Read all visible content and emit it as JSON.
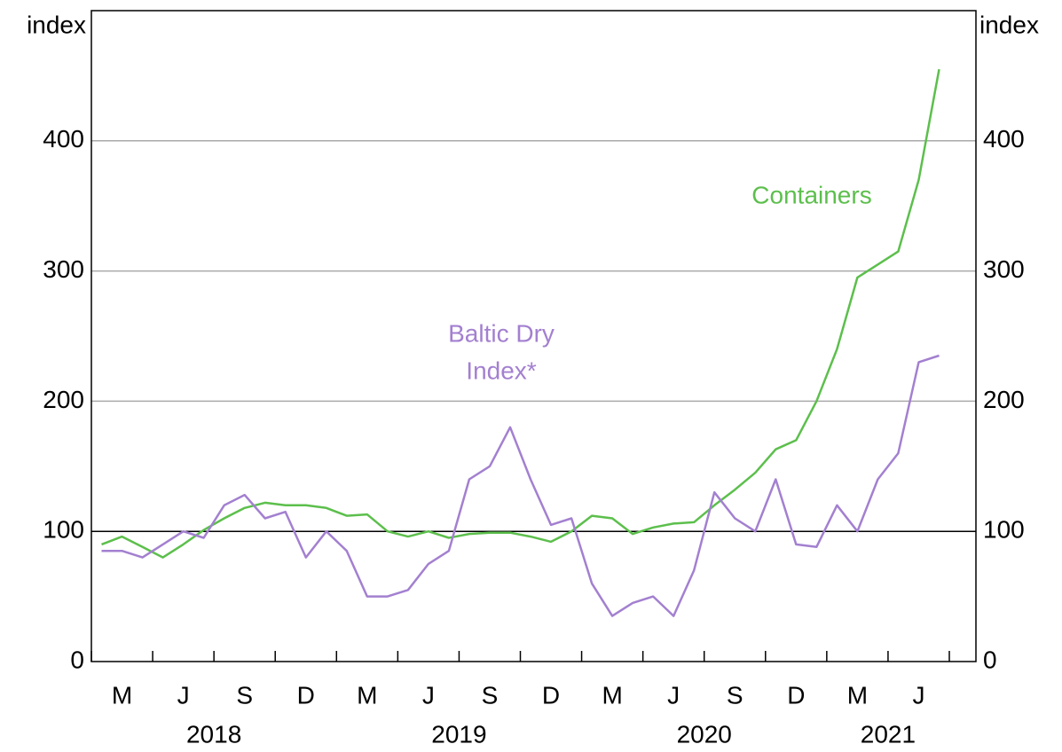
{
  "chart_data": {
    "type": "line",
    "ylabel": "index",
    "y2label": "index",
    "ylim": [
      0,
      500
    ],
    "yticks": [
      0,
      100,
      200,
      300,
      400
    ],
    "y2lim": [
      0,
      500
    ],
    "y2ticks": [
      0,
      100,
      200,
      300,
      400
    ],
    "reference_line": 100,
    "grid": true,
    "xlim": [
      "2018-01",
      "2021-07"
    ],
    "xticks": [
      "2018-01",
      "2018-04",
      "2018-07",
      "2018-10",
      "2019-01",
      "2019-04",
      "2019-07",
      "2019-10",
      "2020-01",
      "2020-04",
      "2020-07",
      "2020-10",
      "2021-01",
      "2021-04",
      "2021-07"
    ],
    "month_labels": [
      {
        "value": "2018-02",
        "label": "M"
      },
      {
        "value": "2018-05",
        "label": "J"
      },
      {
        "value": "2018-08",
        "label": "S"
      },
      {
        "value": "2018-11",
        "label": "D"
      },
      {
        "value": "2019-02",
        "label": "M"
      },
      {
        "value": "2019-05",
        "label": "J"
      },
      {
        "value": "2019-08",
        "label": "S"
      },
      {
        "value": "2019-11",
        "label": "D"
      },
      {
        "value": "2020-02",
        "label": "M"
      },
      {
        "value": "2020-05",
        "label": "J"
      },
      {
        "value": "2020-08",
        "label": "S"
      },
      {
        "value": "2020-11",
        "label": "D"
      },
      {
        "value": "2021-02",
        "label": "M"
      },
      {
        "value": "2021-05",
        "label": "J"
      }
    ],
    "year_labels": [
      2018,
      2019,
      2020,
      2021
    ],
    "x": [
      "2018-01",
      "2018-02",
      "2018-03",
      "2018-04",
      "2018-05",
      "2018-06",
      "2018-07",
      "2018-08",
      "2018-09",
      "2018-10",
      "2018-11",
      "2018-12",
      "2019-01",
      "2019-02",
      "2019-03",
      "2019-04",
      "2019-05",
      "2019-06",
      "2019-07",
      "2019-08",
      "2019-09",
      "2019-10",
      "2019-11",
      "2019-12",
      "2020-01",
      "2020-02",
      "2020-03",
      "2020-04",
      "2020-05",
      "2020-06",
      "2020-07",
      "2020-08",
      "2020-09",
      "2020-10",
      "2020-11",
      "2020-12",
      "2021-01",
      "2021-02",
      "2021-03",
      "2021-04",
      "2021-05",
      "2021-06"
    ],
    "series": [
      {
        "name": [
          "Containers"
        ],
        "color": "#5cbf4c",
        "values": [
          90,
          96,
          88,
          80,
          90,
          101,
          110,
          118,
          122,
          120,
          120,
          118,
          112,
          113,
          100,
          96,
          100,
          95,
          98,
          99,
          99,
          96,
          92,
          100,
          112,
          110,
          98,
          103,
          106,
          107,
          120,
          132,
          145,
          163,
          170,
          200,
          240,
          295,
          305,
          315,
          370,
          455
        ]
      },
      {
        "name": [
          "Baltic Dry",
          "Index*"
        ],
        "color": "#a380d0",
        "values": [
          85,
          85,
          80,
          90,
          100,
          95,
          120,
          128,
          110,
          115,
          80,
          100,
          85,
          50,
          50,
          55,
          75,
          85,
          140,
          150,
          180,
          140,
          105,
          110,
          60,
          35,
          45,
          50,
          35,
          70,
          130,
          110,
          100,
          140,
          90,
          88,
          120,
          100,
          140,
          160,
          230,
          235
        ]
      }
    ]
  }
}
